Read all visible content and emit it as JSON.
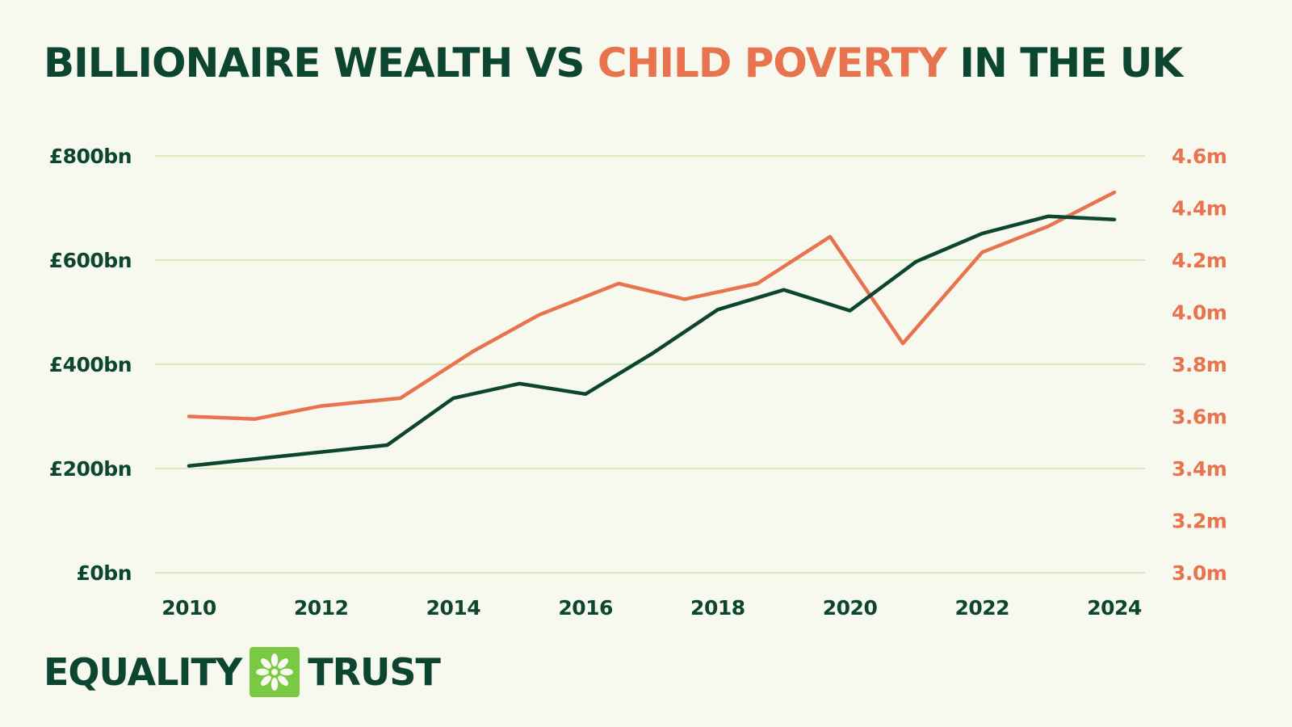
{
  "title": {
    "part1": "BILLIONAIRE WEALTH VS",
    "part2": "CHILD POVERTY",
    "part3": "IN THE UK"
  },
  "logo": {
    "word1": "EQUALITY",
    "word2": "TRUST",
    "mark_color": "#7ac943"
  },
  "colors": {
    "dark_green": "#0c4530",
    "coral": "#e8734f",
    "grid": "#b9d98c",
    "background": "#f8f9ee"
  },
  "chart_data": {
    "type": "line",
    "x_ticks": [
      "2010",
      "2012",
      "2014",
      "2016",
      "2018",
      "2020",
      "2022",
      "2024"
    ],
    "y_left": {
      "ylim": [
        0,
        800
      ],
      "ticks": [
        0,
        200,
        400,
        600,
        800
      ],
      "tick_labels": [
        "£0bn",
        "£200bn",
        "£400bn",
        "£600bn",
        "£800bn"
      ]
    },
    "y_right": {
      "ylim": [
        3.0,
        4.6
      ],
      "ticks": [
        3.0,
        3.2,
        3.4,
        3.6,
        3.8,
        4.0,
        4.2,
        4.4,
        4.6
      ],
      "tick_labels": [
        "3.0m",
        "3.2m",
        "3.4m",
        "3.6m",
        "3.8m",
        "4.0m",
        "4.2m",
        "4.4m",
        "4.6m"
      ]
    },
    "grid": true,
    "series": [
      {
        "axis": "left",
        "color": "#0c4530",
        "points": [
          {
            "x": 2010.0,
            "y": 205
          },
          {
            "x": 2013.0,
            "y": 245
          },
          {
            "x": 2014.0,
            "y": 335
          },
          {
            "x": 2015.0,
            "y": 363
          },
          {
            "x": 2016.0,
            "y": 343
          },
          {
            "x": 2017.0,
            "y": 420
          },
          {
            "x": 2018.0,
            "y": 505
          },
          {
            "x": 2019.0,
            "y": 543
          },
          {
            "x": 2020.0,
            "y": 503
          },
          {
            "x": 2021.0,
            "y": 597
          },
          {
            "x": 2022.0,
            "y": 651
          },
          {
            "x": 2023.0,
            "y": 684
          },
          {
            "x": 2024.0,
            "y": 678
          }
        ]
      },
      {
        "axis": "right",
        "color": "#e8734f",
        "points": [
          {
            "x": 2010.0,
            "y": 3.6
          },
          {
            "x": 2011.0,
            "y": 3.59
          },
          {
            "x": 2012.0,
            "y": 3.64
          },
          {
            "x": 2013.2,
            "y": 3.67
          },
          {
            "x": 2014.3,
            "y": 3.85
          },
          {
            "x": 2015.3,
            "y": 3.99
          },
          {
            "x": 2016.5,
            "y": 4.11
          },
          {
            "x": 2017.5,
            "y": 4.05
          },
          {
            "x": 2018.6,
            "y": 4.11
          },
          {
            "x": 2019.7,
            "y": 4.29
          },
          {
            "x": 2020.8,
            "y": 3.88
          },
          {
            "x": 2022.0,
            "y": 4.23
          },
          {
            "x": 2023.0,
            "y": 4.33
          },
          {
            "x": 2024.0,
            "y": 4.46
          }
        ]
      }
    ]
  }
}
